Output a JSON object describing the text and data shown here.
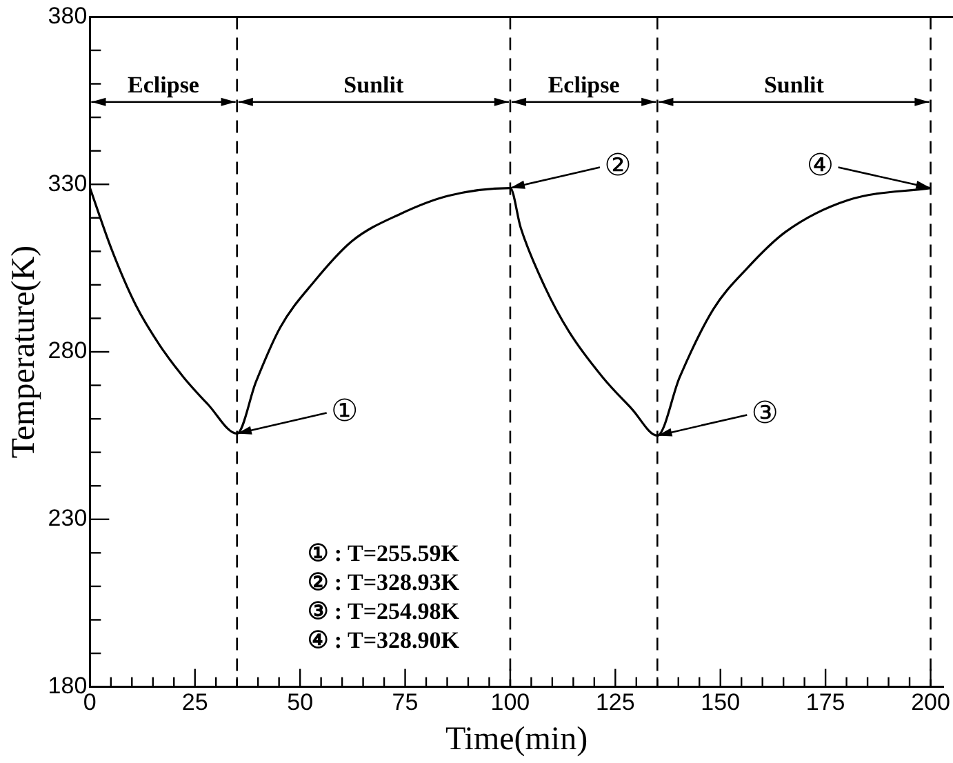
{
  "chart_data": {
    "type": "line",
    "xlabel": "Time(min)",
    "ylabel": "Temperature(K)",
    "series": [
      {
        "color": "#000000",
        "x": [
          0,
          5.2,
          10.9,
          16.6,
          22.3,
          28.1,
          35,
          39.5,
          45.3,
          53.3,
          62.4,
          73.9,
          85.3,
          100,
          102.5,
          108.2,
          114,
          122,
          128.9,
          135,
          140.3,
          148.3,
          156.4,
          165.5,
          180.4,
          200
        ],
        "values": [
          329,
          310.5,
          294,
          282,
          272.4,
          264.3,
          255.6,
          271,
          287.3,
          300.9,
          313.1,
          321.2,
          326.6,
          328.9,
          317,
          299.5,
          286,
          272.4,
          263,
          255,
          272.4,
          292.7,
          305,
          315.8,
          325.3,
          328.9
        ]
      }
    ],
    "xlim": [
      0,
      203
    ],
    "xticks": [
      0,
      {
        "value": 5,
        "label": null
      },
      {
        "value": 10,
        "label": null
      },
      {
        "value": 15,
        "label": null
      },
      {
        "value": 20,
        "label": null
      },
      25,
      {
        "value": 30,
        "label": null
      },
      {
        "value": 35,
        "label": null
      },
      {
        "value": 40,
        "label": null
      },
      {
        "value": 45,
        "label": null
      },
      50,
      {
        "value": 55,
        "label": null
      },
      {
        "value": 60,
        "label": null
      },
      {
        "value": 65,
        "label": null
      },
      {
        "value": 70,
        "label": null
      },
      75,
      {
        "value": 80,
        "label": null
      },
      {
        "value": 85,
        "label": null
      },
      {
        "value": 90,
        "label": null
      },
      {
        "value": 95,
        "label": null
      },
      100,
      {
        "value": 105,
        "label": null
      },
      {
        "value": 110,
        "label": null
      },
      {
        "value": 115,
        "label": null
      },
      {
        "value": 120,
        "label": null
      },
      125,
      {
        "value": 130,
        "label": null
      },
      {
        "value": 135,
        "label": null
      },
      {
        "value": 140,
        "label": null
      },
      {
        "value": 145,
        "label": null
      },
      150,
      {
        "value": 155,
        "label": null
      },
      {
        "value": 160,
        "label": null
      },
      {
        "value": 165,
        "label": null
      },
      {
        "value": 170,
        "label": null
      },
      175,
      {
        "value": 180,
        "label": null
      },
      {
        "value": 185,
        "label": null
      },
      {
        "value": 190,
        "label": null
      },
      {
        "value": 195,
        "label": null
      },
      200
    ],
    "ylim": [
      180,
      380
    ],
    "yticks": [
      180,
      {
        "value": 190,
        "label": null
      },
      {
        "value": 200,
        "label": null
      },
      {
        "value": 210,
        "label": null
      },
      {
        "value": 220,
        "label": null
      },
      230,
      {
        "value": 240,
        "label": null
      },
      {
        "value": 250,
        "label": null
      },
      {
        "value": 260,
        "label": null
      },
      {
        "value": 270,
        "label": null
      },
      280,
      {
        "value": 290,
        "label": null
      },
      {
        "value": 300,
        "label": null
      },
      {
        "value": 310,
        "label": null
      },
      {
        "value": 320,
        "label": null
      },
      330,
      {
        "value": 340,
        "label": null
      },
      {
        "value": 350,
        "label": null
      },
      {
        "value": 360,
        "label": null
      },
      {
        "value": 370,
        "label": null
      },
      380
    ],
    "ref_lines": [
      {
        "axis": "x",
        "value": 35,
        "line_style": "dashed"
      },
      {
        "axis": "x",
        "value": 100,
        "line_style": "dashed"
      },
      {
        "axis": "x",
        "value": 135,
        "line_style": "dashed"
      },
      {
        "axis": "x",
        "value": 200,
        "line_style": "dashed"
      }
    ],
    "annotations": [
      "Eclipse",
      "Sunlit",
      "Eclipse",
      "Sunlit",
      {
        "text": "①",
        "x": 35,
        "y": 255.6
      },
      {
        "text": "②",
        "x": 100,
        "y": 328.9
      },
      {
        "text": "③",
        "x": 135,
        "y": 255
      },
      {
        "text": "④",
        "x": 200,
        "y": 328.9
      },
      "① : T=255.59K",
      "② : T=328.93K",
      "③ : T=254.98K",
      "④ : T=328.90K"
    ],
    "grid": false,
    "legend": false,
    "marker": "none",
    "line_style": "solid"
  }
}
